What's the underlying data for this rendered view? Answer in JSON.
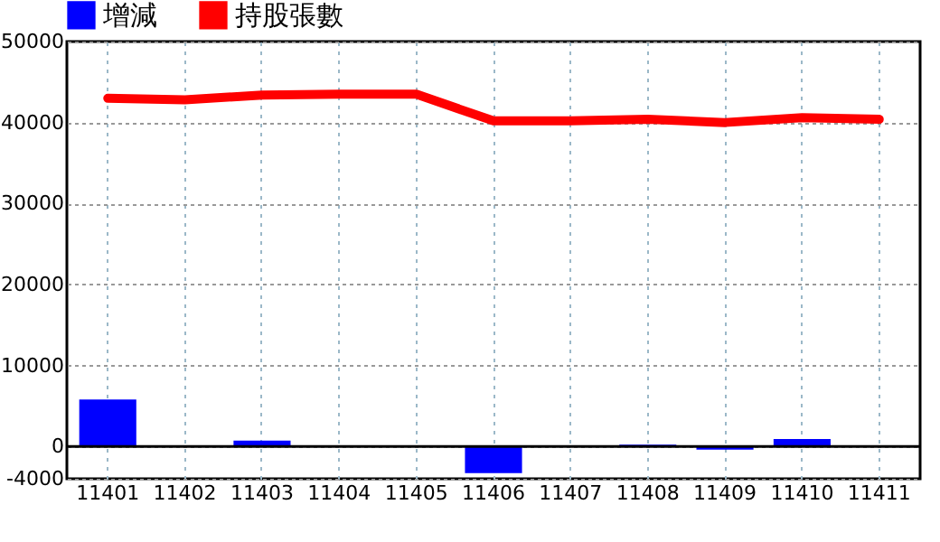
{
  "chart_data": {
    "type": "bar",
    "categories": [
      "11401",
      "11402",
      "11403",
      "11404",
      "11405",
      "11406",
      "11407",
      "11408",
      "11409",
      "11410",
      "11411"
    ],
    "series": [
      {
        "name": "增減",
        "color": "#0000ff",
        "values": [
          5800,
          0,
          700,
          0,
          0,
          -3300,
          0,
          200,
          -400,
          900,
          0
        ]
      },
      {
        "name": "持股張數",
        "type": "line",
        "color": "#ff0000",
        "values": [
          43000,
          42800,
          43400,
          43500,
          43500,
          40200,
          40200,
          40400,
          40000,
          40600,
          40400
        ]
      }
    ],
    "ylim": [
      -4000,
      50000
    ],
    "yticks": [
      -4000,
      0,
      10000,
      20000,
      30000,
      40000,
      50000
    ],
    "grid": true,
    "legend": "top"
  }
}
